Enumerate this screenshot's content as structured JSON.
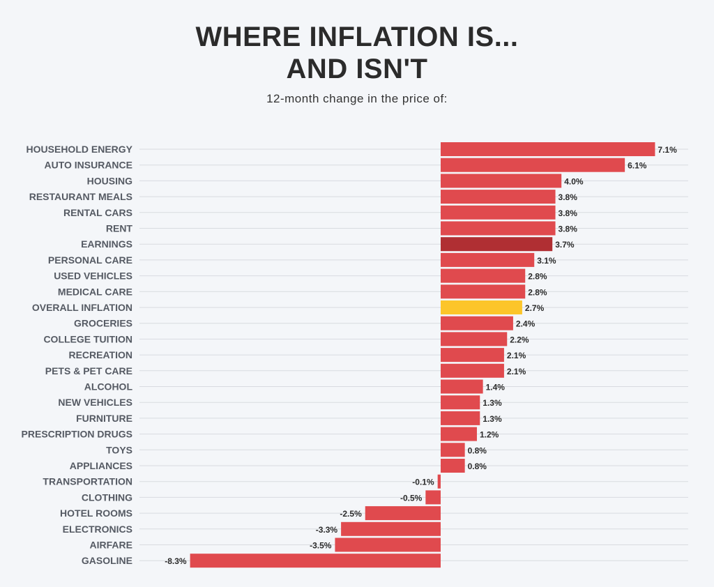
{
  "title_line1": "WHERE INFLATION IS...",
  "title_line2": "AND ISN'T",
  "subtitle": "12-month change in the price of:",
  "colors": {
    "background": "#f4f6f9",
    "bar": "#e04a4e",
    "earnings": "#b02f33",
    "overall_inflation": "#fcc52a",
    "gridline": "#d8dbe0"
  },
  "chart_data": {
    "type": "bar",
    "orientation": "horizontal",
    "title": "WHERE INFLATION IS... AND ISN'T",
    "subtitle": "12-month change in the price of:",
    "unit": "%",
    "categories": [
      "HOUSEHOLD ENERGY",
      "AUTO INSURANCE",
      "HOUSING",
      "RESTAURANT MEALS",
      "RENTAL CARS",
      "RENT",
      "EARNINGS",
      "PERSONAL CARE",
      "USED VEHICLES",
      "MEDICAL CARE",
      "OVERALL INFLATION",
      "GROCERIES",
      "COLLEGE TUITION",
      "RECREATION",
      "PETS & PET CARE",
      "ALCOHOL",
      "NEW VEHICLES",
      "FURNITURE",
      "PRESCRIPTION DRUGS",
      "TOYS",
      "APPLIANCES",
      "TRANSPORTATION",
      "CLOTHING",
      "HOTEL ROOMS",
      "ELECTRONICS",
      "AIRFARE",
      "GASOLINE"
    ],
    "values": [
      7.1,
      6.1,
      4.0,
      3.8,
      3.8,
      3.8,
      3.7,
      3.1,
      2.8,
      2.8,
      2.7,
      2.4,
      2.2,
      2.1,
      2.1,
      1.4,
      1.3,
      1.3,
      1.2,
      0.8,
      0.8,
      -0.1,
      -0.5,
      -2.5,
      -3.3,
      -3.5,
      -8.3
    ],
    "value_labels": [
      "7.1%",
      "6.1%",
      "4.0%",
      "3.8%",
      "3.8%",
      "3.8%",
      "3.7%",
      "3.1%",
      "2.8%",
      "2.8%",
      "2.7%",
      "2.4%",
      "2.2%",
      "2.1%",
      "2.1%",
      "1.4%",
      "1.3%",
      "1.3%",
      "1.2%",
      "0.8%",
      "0.8%",
      "-0.1%",
      "-0.5%",
      "-2.5%",
      "-3.3%",
      "-3.5%",
      "-8.3%"
    ],
    "highlight": {
      "EARNINGS": "earnings",
      "OVERALL INFLATION": "overall_inflation"
    },
    "xlim": [
      -8.3,
      8.3
    ],
    "grid": true,
    "legend": "none"
  }
}
